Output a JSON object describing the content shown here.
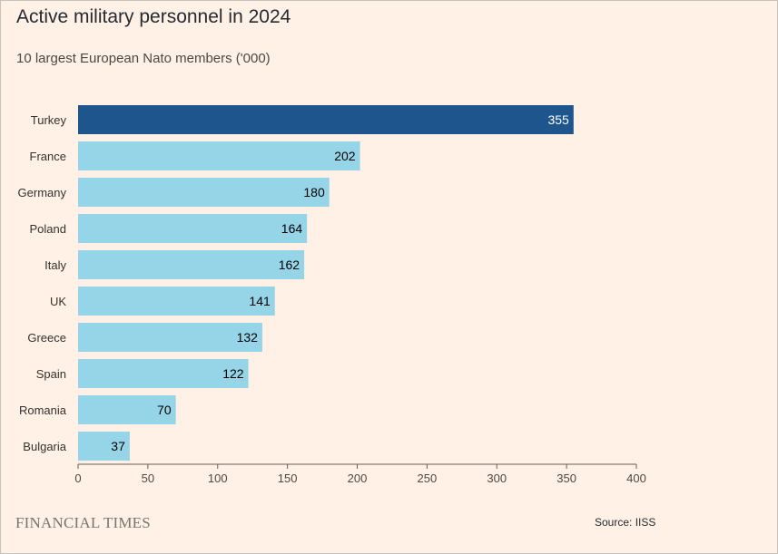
{
  "header": {
    "title": "Active military personnel in 2024",
    "subtitle": "10 largest European Nato members ('000)"
  },
  "footer": {
    "brand": "FINANCIAL TIMES",
    "source": "Source: IISS"
  },
  "colors": {
    "background": "#fff1e5",
    "highlight_bar": "#1e558c",
    "bar": "#96d4e8"
  },
  "chart_data": {
    "type": "bar",
    "orientation": "horizontal",
    "categories": [
      "Turkey",
      "France",
      "Germany",
      "Poland",
      "Italy",
      "UK",
      "Greece",
      "Spain",
      "Romania",
      "Bulgaria"
    ],
    "values": [
      355,
      202,
      180,
      164,
      162,
      141,
      132,
      122,
      70,
      37
    ],
    "highlight": "Turkey",
    "xlim": [
      0,
      400
    ],
    "xticks": [
      0,
      50,
      100,
      150,
      200,
      250,
      300,
      350,
      400
    ],
    "xlabel": "",
    "ylabel": "",
    "grid": false,
    "data_labels": true
  }
}
